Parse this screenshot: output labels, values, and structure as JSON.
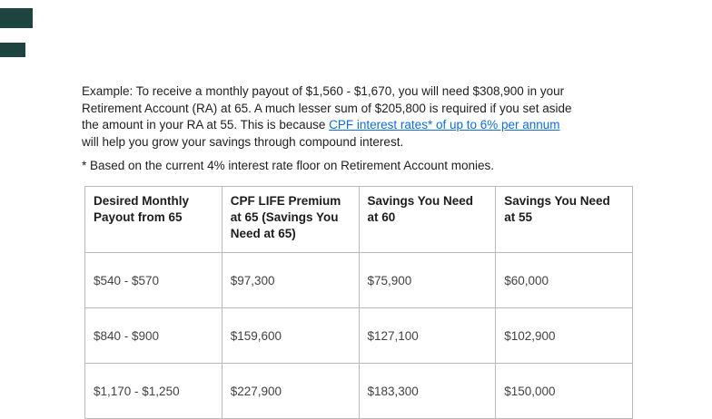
{
  "colors": {
    "link": "#0d6ee0",
    "table_border": "#b9b9b9",
    "body_text": "#202020",
    "image_placeholder": "#1d443f"
  },
  "paragraph": {
    "line1": "Example: To receive a monthly payout of $1,560 - $1,670, you will need $308,900 in your",
    "line2": "Retirement Account (RA) at 65. A much lesser sum of $205,800 is required if you set aside",
    "line3_prefix": "the amount in your RA at 55. This is because ",
    "link_text": "CPF interest rates* of up to 6% per annum",
    "line4": "will help you grow your savings through compound interest."
  },
  "footnote": {
    "text": "* Based on the current 4% interest rate floor on Retirement Account monies."
  },
  "table": {
    "headers": [
      "Desired Monthly Payout from 65",
      "CPF LIFE Premium at 65 (Savings You Need at 65)",
      "Savings You Need at 60",
      "Savings You Need at 55"
    ],
    "rows": [
      [
        "$540 - $570",
        "$97,300",
        "$75,900",
        "$60,000"
      ],
      [
        "$840 - $900",
        "$159,600",
        "$127,100",
        "$102,900"
      ],
      [
        "$1,170 - $1,250",
        "$227,900",
        "$183,300",
        "$150,000"
      ]
    ]
  }
}
